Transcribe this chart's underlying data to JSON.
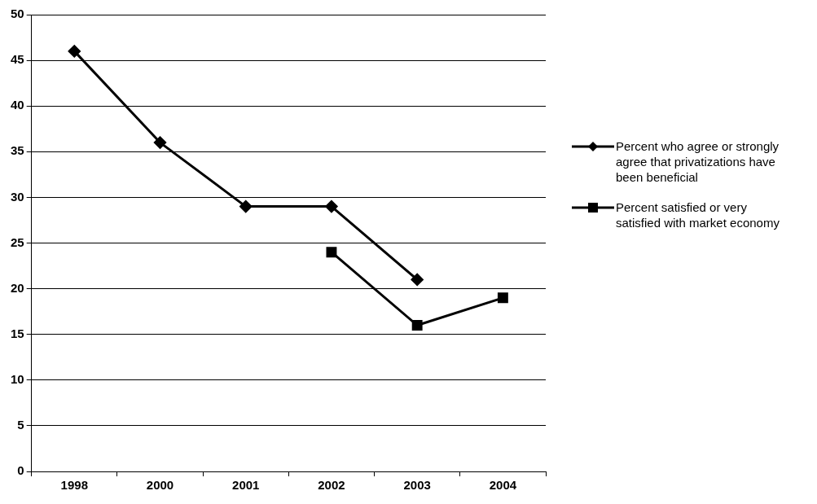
{
  "chart_data": {
    "type": "line",
    "categories": [
      "1998",
      "2000",
      "2001",
      "2002",
      "2003",
      "2004"
    ],
    "series": [
      {
        "name": "Percent who agree or strongly agree that privatizations have been beneficial",
        "color": "#000000",
        "marker": "diamond",
        "values": [
          46,
          36,
          29,
          29,
          21,
          null
        ]
      },
      {
        "name": "Percent satisfied or very satisfied with market economy",
        "color": "#000000",
        "marker": "square",
        "values": [
          null,
          null,
          null,
          24,
          16,
          19
        ]
      }
    ],
    "ylim": [
      0,
      50
    ],
    "yticks": [
      0,
      5,
      10,
      15,
      20,
      25,
      30,
      35,
      40,
      45,
      50
    ],
    "grid": "y",
    "legend": "right",
    "line_style": "solid"
  }
}
